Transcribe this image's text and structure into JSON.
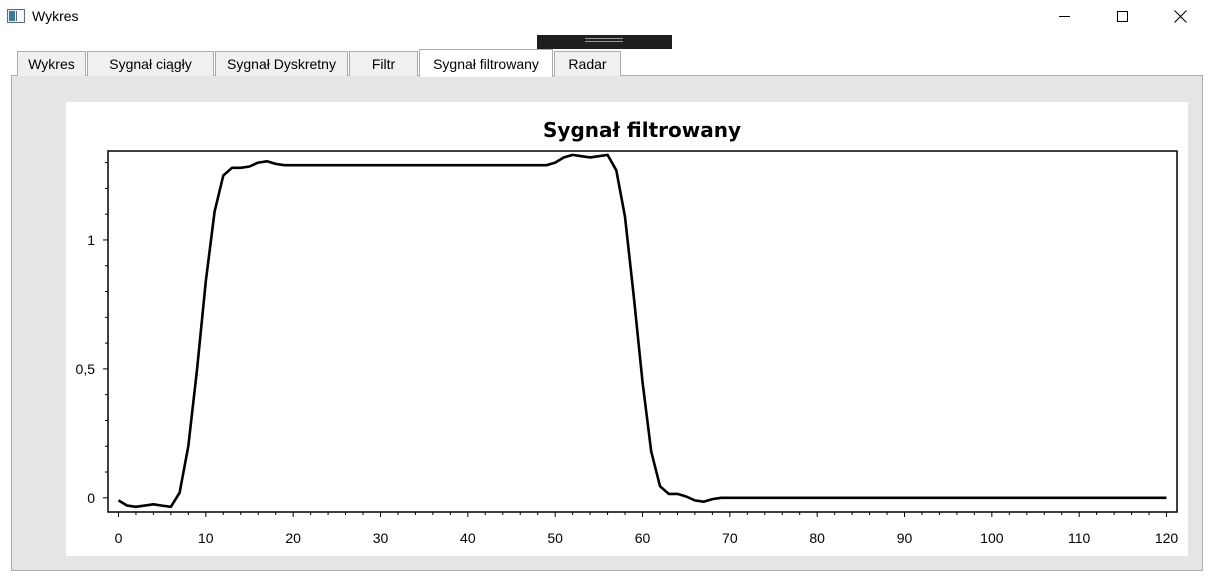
{
  "window": {
    "title": "Wykres",
    "icons": {
      "app": "app-window-icon",
      "minimize": "minimize-icon",
      "maximize": "maximize-icon",
      "close": "close-icon"
    }
  },
  "tabs": [
    {
      "label": "Wykres",
      "active": false
    },
    {
      "label": "Sygnał ciągły",
      "active": false
    },
    {
      "label": "Sygnał Dyskretny",
      "active": false
    },
    {
      "label": "Filtr",
      "active": false
    },
    {
      "label": "Sygnał filtrowany",
      "active": true
    },
    {
      "label": "Radar",
      "active": false
    }
  ],
  "chart_data": {
    "type": "line",
    "title": "Sygnał filtrowany",
    "xlabel": "",
    "ylabel": "",
    "xlim": [
      -1.2,
      121.2
    ],
    "ylim": [
      -0.055,
      1.345
    ],
    "x_ticks": [
      0,
      10,
      20,
      30,
      40,
      50,
      60,
      70,
      80,
      90,
      100,
      110,
      120
    ],
    "x_tick_labels": [
      "0",
      "10",
      "20",
      "30",
      "40",
      "50",
      "60",
      "70",
      "80",
      "90",
      "100",
      "110",
      "120"
    ],
    "y_ticks": [
      0,
      0.5,
      1
    ],
    "y_tick_labels": [
      "0",
      "0,5",
      "1"
    ],
    "grid": false,
    "legend": "none",
    "line_color": "#000000",
    "x": [
      0,
      1,
      2,
      3,
      4,
      5,
      6,
      7,
      8,
      9,
      10,
      11,
      12,
      13,
      14,
      15,
      16,
      17,
      18,
      19,
      20,
      25,
      30,
      35,
      40,
      45,
      48,
      49,
      50,
      51,
      52,
      53,
      54,
      55,
      56,
      57,
      58,
      59,
      60,
      61,
      62,
      63,
      64,
      65,
      66,
      67,
      68,
      69,
      70,
      80,
      90,
      100,
      110,
      120
    ],
    "y": [
      -0.01,
      -0.03,
      -0.035,
      -0.03,
      -0.025,
      -0.03,
      -0.035,
      0.02,
      0.2,
      0.5,
      0.84,
      1.11,
      1.25,
      1.28,
      1.28,
      1.285,
      1.3,
      1.305,
      1.295,
      1.29,
      1.29,
      1.29,
      1.29,
      1.29,
      1.29,
      1.29,
      1.29,
      1.29,
      1.3,
      1.32,
      1.33,
      1.325,
      1.32,
      1.325,
      1.33,
      1.27,
      1.09,
      0.78,
      0.45,
      0.18,
      0.045,
      0.015,
      0.015,
      0.005,
      -0.01,
      -0.015,
      -0.005,
      0,
      0,
      0,
      0,
      0,
      0,
      0
    ]
  }
}
